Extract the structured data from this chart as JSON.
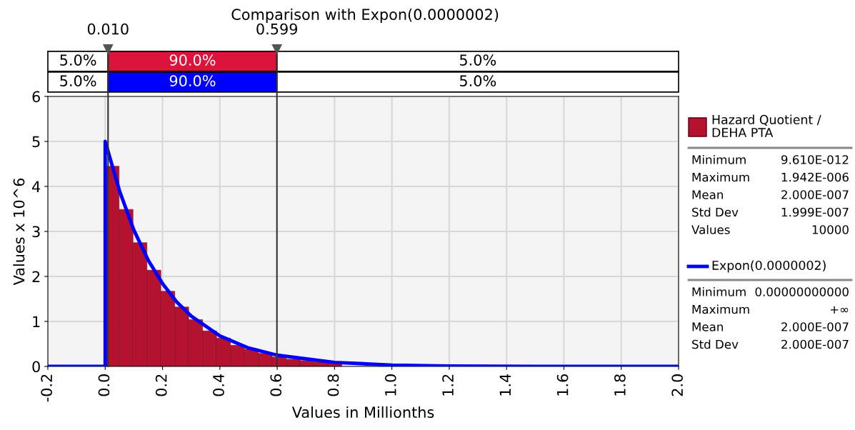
{
  "chart_data": {
    "type": "histogram",
    "title": "Comparison with Expon(0.0000002)",
    "xlabel": "Values in Millionths",
    "ylabel": "Values x 10^6",
    "bins": [
      0,
      0.04855,
      0.0971,
      0.14565,
      0.1942,
      0.24275,
      0.2913,
      0.33985,
      0.3884,
      0.43695,
      0.4855,
      0.53405,
      0.5826,
      0.63115,
      0.6797,
      0.72825,
      0.7768,
      0.82535,
      0.8739,
      0.92245,
      0.971
    ],
    "series": [
      {
        "name": "Hazard Quotient /\nDEHA PTA",
        "color": "#b5122f",
        "values": [
          4.45,
          3.49,
          2.75,
          2.14,
          1.67,
          1.32,
          1.04,
          0.79,
          0.63,
          0.47,
          0.38,
          0.29,
          0.21,
          0.16,
          0.13,
          0.1,
          0.08,
          null,
          null,
          null
        ]
      },
      {
        "name": "Expon(0.0000002)",
        "type": "line",
        "color": "#0000ff",
        "x": [
          -0.2,
          0,
          0,
          0.05,
          0.1,
          0.15,
          0.2,
          0.25,
          0.3,
          0.4,
          0.5,
          0.6,
          0.8,
          1.0,
          1.2,
          1.5,
          2.0
        ],
        "values": [
          0,
          0,
          5,
          3.9,
          3.03,
          2.36,
          1.84,
          1.43,
          1.12,
          0.68,
          0.41,
          0.25,
          0.09,
          0.03,
          0.01,
          0,
          0
        ]
      }
    ],
    "xlim": [
      -0.2,
      2.0
    ],
    "xticks": [
      -0.2,
      {
        "value": 0,
        "label": "0.0"
      },
      0.2,
      0.4,
      0.6,
      0.8,
      {
        "value": 1.0,
        "label": "1.0"
      },
      1.2,
      1.4,
      1.6,
      1.8,
      {
        "value": 2.0,
        "label": "2.0"
      }
    ],
    "ylim": [
      0,
      6
    ],
    "yticks": [
      0,
      1,
      2,
      3,
      4,
      5,
      6
    ],
    "grid": true,
    "ref_lines": [
      {
        "axis": "x",
        "value": 0.01,
        "label": "0.010",
        "color": "#333333"
      },
      {
        "axis": "x",
        "value": 0.599,
        "label": "0.599",
        "color": "#333333"
      }
    ],
    "annotations": [
      "5.0%",
      "90.0%",
      "5.0%",
      "5.0%",
      "90.0%",
      "5.0%",
      "Minimum",
      "9.610E-012",
      "Maximum",
      "1.942E-006",
      "Mean",
      "2.000E-007",
      "Std Dev",
      "1.999E-007",
      "Values",
      "10000",
      "Minimum",
      "0.00000000000",
      "Maximum",
      "+∞",
      "Mean",
      "2.000E-007",
      "Std Dev",
      "2.000E-007"
    ],
    "legend": "right"
  }
}
